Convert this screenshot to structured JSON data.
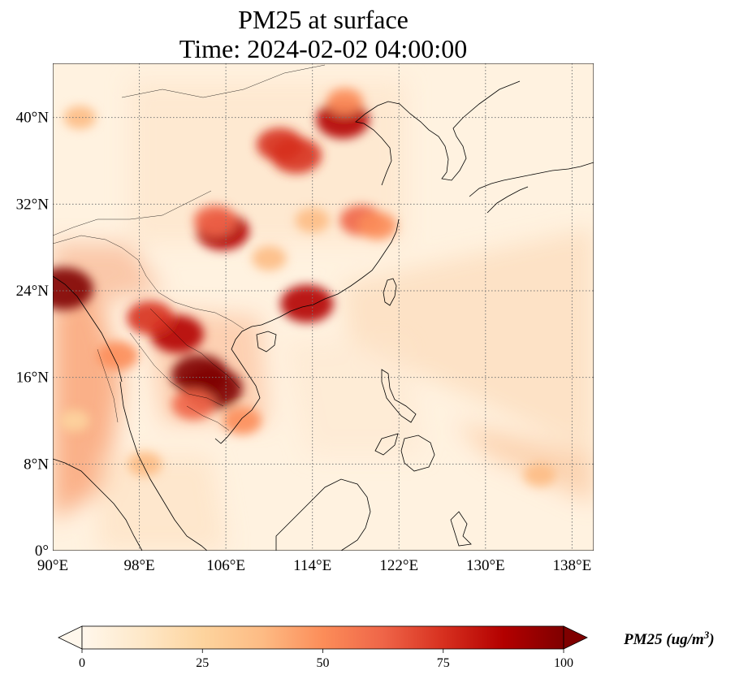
{
  "title": "PM25 at surface",
  "subtitle": "Time: 2024-02-02 04:00:00",
  "map": {
    "projection": "PlateCarree",
    "lon_range": [
      90,
      140
    ],
    "lat_range": [
      0,
      45
    ],
    "grid": "dotted",
    "lon_ticks": [
      {
        "value": 90,
        "label": "90°E"
      },
      {
        "value": 98,
        "label": "98°E"
      },
      {
        "value": 106,
        "label": "106°E"
      },
      {
        "value": 114,
        "label": "114°E"
      },
      {
        "value": 122,
        "label": "122°E"
      },
      {
        "value": 130,
        "label": "130°E"
      },
      {
        "value": 138,
        "label": "138°E"
      }
    ],
    "lat_ticks": [
      {
        "value": 0,
        "label": "0°"
      },
      {
        "value": 8,
        "label": "8°N"
      },
      {
        "value": 16,
        "label": "16°N"
      },
      {
        "value": 24,
        "label": "24°N"
      },
      {
        "value": 32,
        "label": "32°N"
      },
      {
        "value": 40,
        "label": "40°N"
      }
    ],
    "hotspots": [
      {
        "lon": 104.8,
        "lat": 15.0,
        "level": 100
      },
      {
        "lon": 103.6,
        "lat": 16.2,
        "level": 95
      },
      {
        "lon": 91.0,
        "lat": 24.2,
        "level": 100
      },
      {
        "lon": 103.0,
        "lat": 13.5,
        "level": 60
      },
      {
        "lon": 101.5,
        "lat": 20.0,
        "level": 85
      },
      {
        "lon": 99.0,
        "lat": 21.5,
        "level": 70
      },
      {
        "lon": 96.0,
        "lat": 18.0,
        "level": 55
      },
      {
        "lon": 113.5,
        "lat": 22.8,
        "level": 85
      },
      {
        "lon": 116.8,
        "lat": 39.8,
        "level": 85
      },
      {
        "lon": 112.5,
        "lat": 36.5,
        "level": 80
      },
      {
        "lon": 111.0,
        "lat": 37.5,
        "level": 70
      },
      {
        "lon": 105.7,
        "lat": 29.5,
        "level": 85
      },
      {
        "lon": 105.0,
        "lat": 30.5,
        "level": 60
      },
      {
        "lon": 118.5,
        "lat": 30.5,
        "level": 60
      },
      {
        "lon": 120.0,
        "lat": 30.0,
        "level": 50
      },
      {
        "lon": 117.0,
        "lat": 41.5,
        "level": 45
      },
      {
        "lon": 92.5,
        "lat": 40.0,
        "level": 35
      },
      {
        "lon": 114.0,
        "lat": 30.5,
        "level": 40
      },
      {
        "lon": 110.0,
        "lat": 27.0,
        "level": 40
      },
      {
        "lon": 107.5,
        "lat": 12.0,
        "level": 50
      },
      {
        "lon": 98.5,
        "lat": 8.0,
        "level": 40
      },
      {
        "lon": 135.0,
        "lat": 7.0,
        "level": 35
      },
      {
        "lon": 92.0,
        "lat": 12.0,
        "level": 30
      }
    ]
  },
  "colorbar": {
    "label": "PM25 (ug/m",
    "label_sup": "3",
    "label_close": ")",
    "min": 0,
    "max": 100,
    "extend": "both",
    "colormap": "OrRd",
    "ticks": [
      {
        "value": 0,
        "label": "0"
      },
      {
        "value": 25,
        "label": "25"
      },
      {
        "value": 50,
        "label": "50"
      },
      {
        "value": 75,
        "label": "75"
      },
      {
        "value": 100,
        "label": "100"
      }
    ]
  },
  "colors": {
    "low": "#fff7ec",
    "c1": "#fee8c8",
    "c2": "#fdd49e",
    "c3": "#fdbb84",
    "c4": "#fc8d59",
    "c5": "#ef6548",
    "c6": "#d7301f",
    "c7": "#b30000",
    "high": "#7f0000",
    "coast": "#000000",
    "grid": "#777777"
  }
}
